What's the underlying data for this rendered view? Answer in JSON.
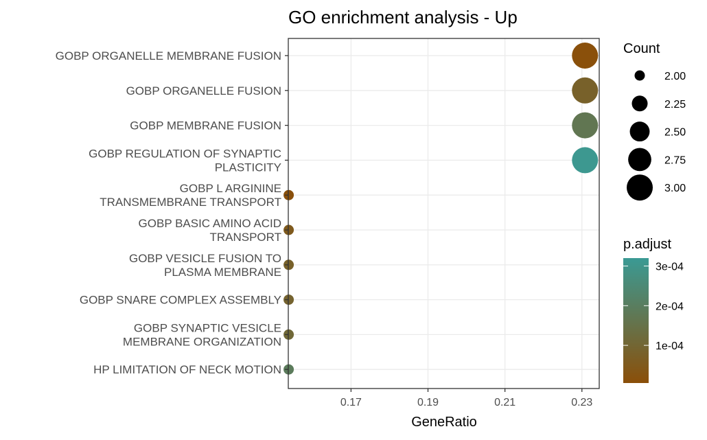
{
  "chart_data": {
    "type": "scatter",
    "title": "GO enrichment analysis - Up",
    "xlabel": "GeneRatio",
    "ylabel": "",
    "xlim": [
      0.1537,
      0.2345
    ],
    "xticks": [
      0.17,
      0.19,
      0.21,
      0.23
    ],
    "x_tick_labels": [
      "0.17",
      "0.19",
      "0.21",
      "0.23"
    ],
    "grid": true,
    "terms": [
      "GOBP ORGANELLE MEMBRANE FUSION",
      "GOBP ORGANELLE FUSION",
      "GOBP MEMBRANE FUSION",
      "GOBP REGULATION OF SYNAPTIC PLASTICITY",
      "GOBP L ARGININE TRANSMEMBRANE TRANSPORT",
      "GOBP BASIC AMINO ACID TRANSPORT",
      "GOBP VESICLE FUSION TO PLASMA MEMBRANE",
      "GOBP SNARE COMPLEX ASSEMBLY",
      "GOBP SYNAPTIC VESICLE MEMBRANE ORGANIZATION",
      "HP LIMITATION OF NECK MOTION"
    ],
    "term_label_lines": [
      [
        "GOBP ORGANELLE MEMBRANE FUSION"
      ],
      [
        "GOBP ORGANELLE FUSION"
      ],
      [
        "GOBP MEMBRANE FUSION"
      ],
      [
        "GOBP REGULATION OF SYNAPTIC",
        "PLASTICITY"
      ],
      [
        "GOBP L ARGININE",
        "TRANSMEMBRANE TRANSPORT"
      ],
      [
        "GOBP BASIC AMINO ACID",
        "TRANSPORT"
      ],
      [
        "GOBP VESICLE FUSION TO",
        "PLASMA MEMBRANE"
      ],
      [
        "GOBP SNARE COMPLEX ASSEMBLY"
      ],
      [
        "GOBP SYNAPTIC VESICLE",
        "MEMBRANE ORGANIZATION"
      ],
      [
        "HP LIMITATION OF NECK MOTION"
      ]
    ],
    "gene_ratio": [
      0.2308,
      0.2308,
      0.2308,
      0.2308,
      0.1538,
      0.1538,
      0.1538,
      0.1538,
      0.1538,
      0.1538
    ],
    "count": [
      3,
      3,
      3,
      3,
      2,
      2,
      2,
      2,
      2,
      2
    ],
    "p_adjust": [
      1e-05,
      8e-05,
      0.00017,
      0.00031,
      1e-05,
      5e-05,
      8e-05,
      9e-05,
      0.00011,
      0.00019
    ],
    "size_legend": {
      "title": "Count",
      "values": [
        2.0,
        2.25,
        2.5,
        2.75,
        3.0
      ],
      "labels": [
        "2.00",
        "2.25",
        "2.50",
        "2.75",
        "3.00"
      ]
    },
    "color_legend": {
      "title": "p.adjust",
      "range": [
        5e-06,
        0.00032
      ],
      "ticks": [
        0.0001,
        0.0002,
        0.0003
      ],
      "labels": [
        "1e-04",
        "2e-04",
        "3e-04"
      ],
      "low_color": "#8b4f09",
      "high_color": "#3a9a94"
    },
    "colors": {
      "background": "#ffffff",
      "panel_border": "#333333",
      "grid": "#ebebeb",
      "tick_text": "#4d4d4d"
    }
  }
}
